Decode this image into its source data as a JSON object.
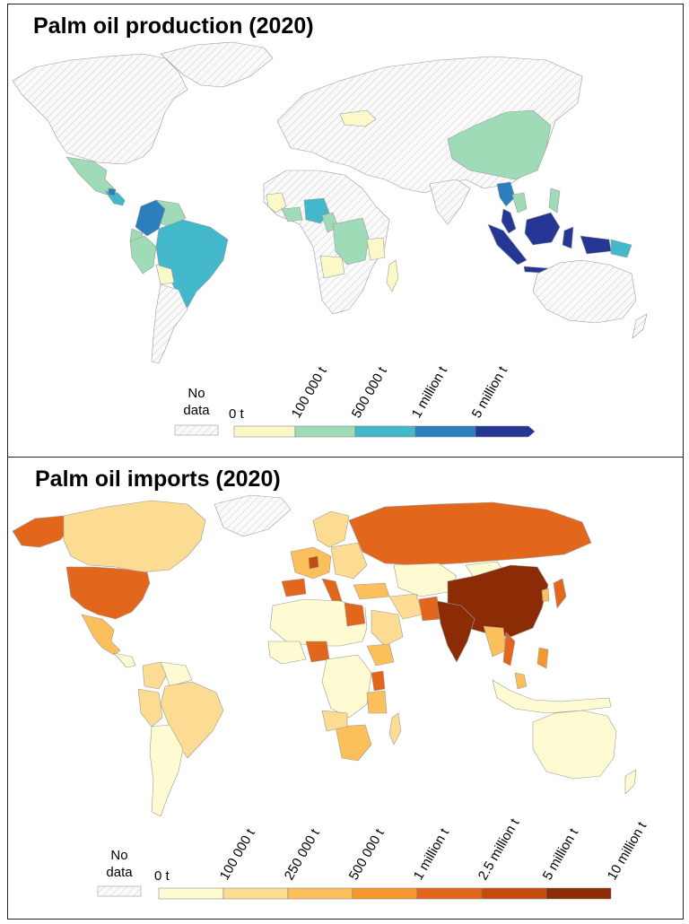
{
  "production": {
    "title": "Palm oil production (2020)",
    "legend": {
      "no_data_line1": "No",
      "no_data_line2": "data",
      "zero": "0 t",
      "ticks": [
        "100 000 t",
        "500 000 t",
        "1 million t",
        "5 million t"
      ],
      "colors": [
        "#fbf9c8",
        "#9fdbb7",
        "#44b8cb",
        "#2b7fbd",
        "#253695"
      ]
    }
  },
  "imports": {
    "title": "Palm oil imports (2020)",
    "legend": {
      "no_data_line1": "No",
      "no_data_line2": "data",
      "zero": "0 t",
      "ticks": [
        "100 000 t",
        "250 000 t",
        "500 000 t",
        "1 million t",
        "2.5 million t",
        "5 million t",
        "10 million t"
      ],
      "colors": [
        "#fefad1",
        "#fbdc92",
        "#fbbf5c",
        "#f7972f",
        "#e2671c",
        "#c44d0d",
        "#8c2c06"
      ]
    }
  },
  "colors": {
    "hatch": "#c9c9c9",
    "border": "#9a9a9a",
    "frame": "#222222"
  }
}
